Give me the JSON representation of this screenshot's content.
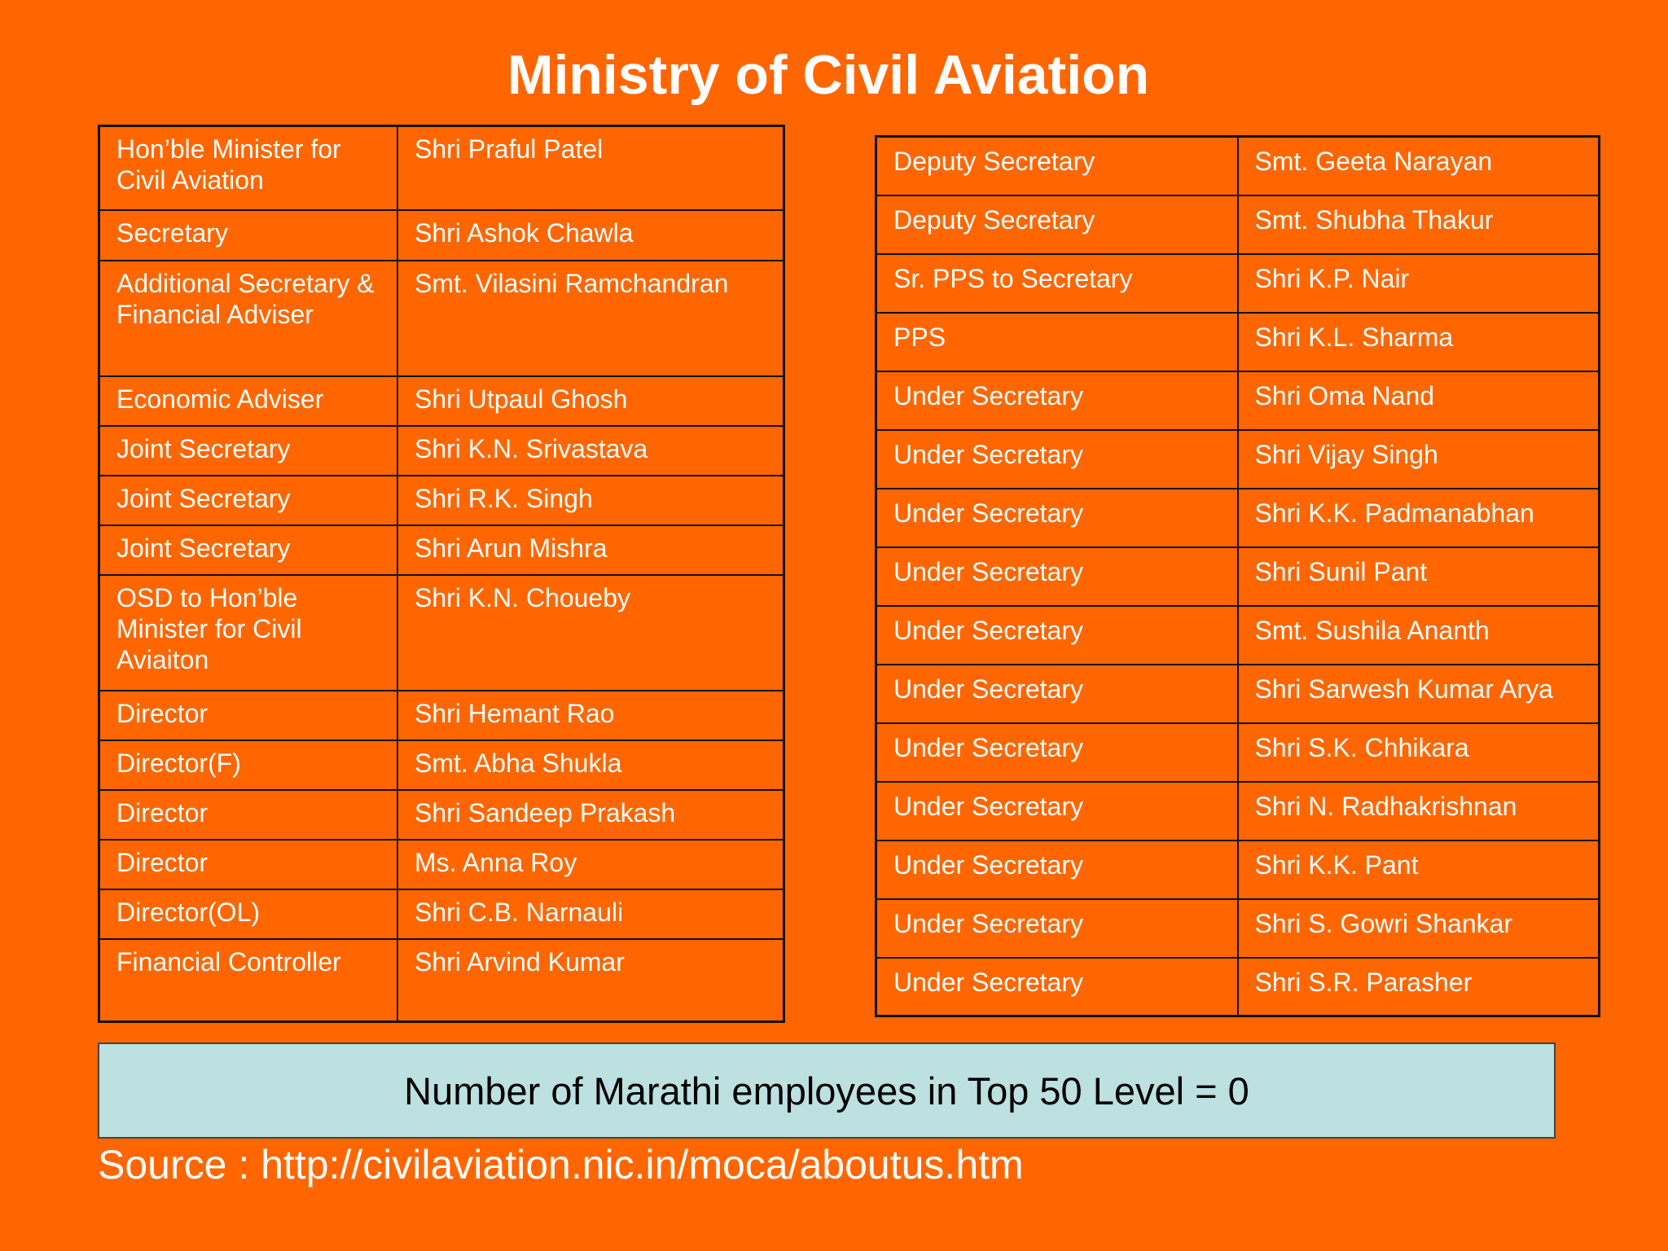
{
  "title": "Ministry of Civil Aviation",
  "colors": {
    "background": "#FF6600",
    "text": "#FFFFFF",
    "border": "#111111",
    "summary_box": "#BDE0E0"
  },
  "left_table": [
    {
      "designation": "Hon’ble Minister for Civil Aviation",
      "name": "Shri Praful Patel"
    },
    {
      "designation": "Secretary",
      "name": "Shri Ashok Chawla"
    },
    {
      "designation": "Additional Secretary & Financial Adviser",
      "name": "Smt. Vilasini Ramchandran"
    },
    {
      "designation": "Economic Adviser",
      "name": "Shri Utpaul Ghosh"
    },
    {
      "designation": "Joint Secretary",
      "name": "Shri K.N. Srivastava"
    },
    {
      "designation": "Joint Secretary",
      "name": "Shri R.K. Singh"
    },
    {
      "designation": "Joint Secretary",
      "name": "Shri Arun Mishra"
    },
    {
      "designation": "OSD to Hon’ble Minister for Civil Aviaiton",
      "name": "Shri K.N. Choueby"
    },
    {
      "designation": "Director",
      "name": "Shri Hemant Rao"
    },
    {
      "designation": "Director(F)",
      "name": "Smt. Abha Shukla"
    },
    {
      "designation": "Director",
      "name": "Shri Sandeep Prakash"
    },
    {
      "designation": "Director",
      "name": "Ms. Anna Roy"
    },
    {
      "designation": "Director(OL)",
      "name": "Shri C.B. Narnauli"
    },
    {
      "designation": "Financial Controller",
      "name": "Shri Arvind Kumar"
    }
  ],
  "right_table": [
    {
      "designation": "Deputy Secretary",
      "name": "Smt. Geeta Narayan"
    },
    {
      "designation": "Deputy Secretary",
      "name": "Smt. Shubha Thakur"
    },
    {
      "designation": "Sr. PPS to Secretary",
      "name": "Shri K.P. Nair"
    },
    {
      "designation": "PPS",
      "name": "Shri K.L. Sharma"
    },
    {
      "designation": "Under Secretary",
      "name": "Shri Oma Nand"
    },
    {
      "designation": "Under Secretary",
      "name": "Shri Vijay Singh"
    },
    {
      "designation": "Under Secretary",
      "name": "Shri K.K. Padmanabhan"
    },
    {
      "designation": "Under Secretary",
      "name": "Shri Sunil Pant"
    },
    {
      "designation": "Under Secretary",
      "name": "Smt. Sushila Ananth"
    },
    {
      "designation": "Under Secretary",
      "name": "Shri Sarwesh Kumar Arya"
    },
    {
      "designation": "Under Secretary",
      "name": "Shri S.K. Chhikara"
    },
    {
      "designation": "Under Secretary",
      "name": "Shri N. Radhakrishnan"
    },
    {
      "designation": "Under Secretary",
      "name": "Shri K.K. Pant"
    },
    {
      "designation": "Under Secretary",
      "name": "Shri S. Gowri Shankar"
    },
    {
      "designation": "Under Secretary",
      "name": "Shri S.R. Parasher"
    }
  ],
  "summary": "Number of Marathi employees in Top 50 Level = 0",
  "source": "Source : http://civilaviation.nic.in/moca/aboutus.htm"
}
